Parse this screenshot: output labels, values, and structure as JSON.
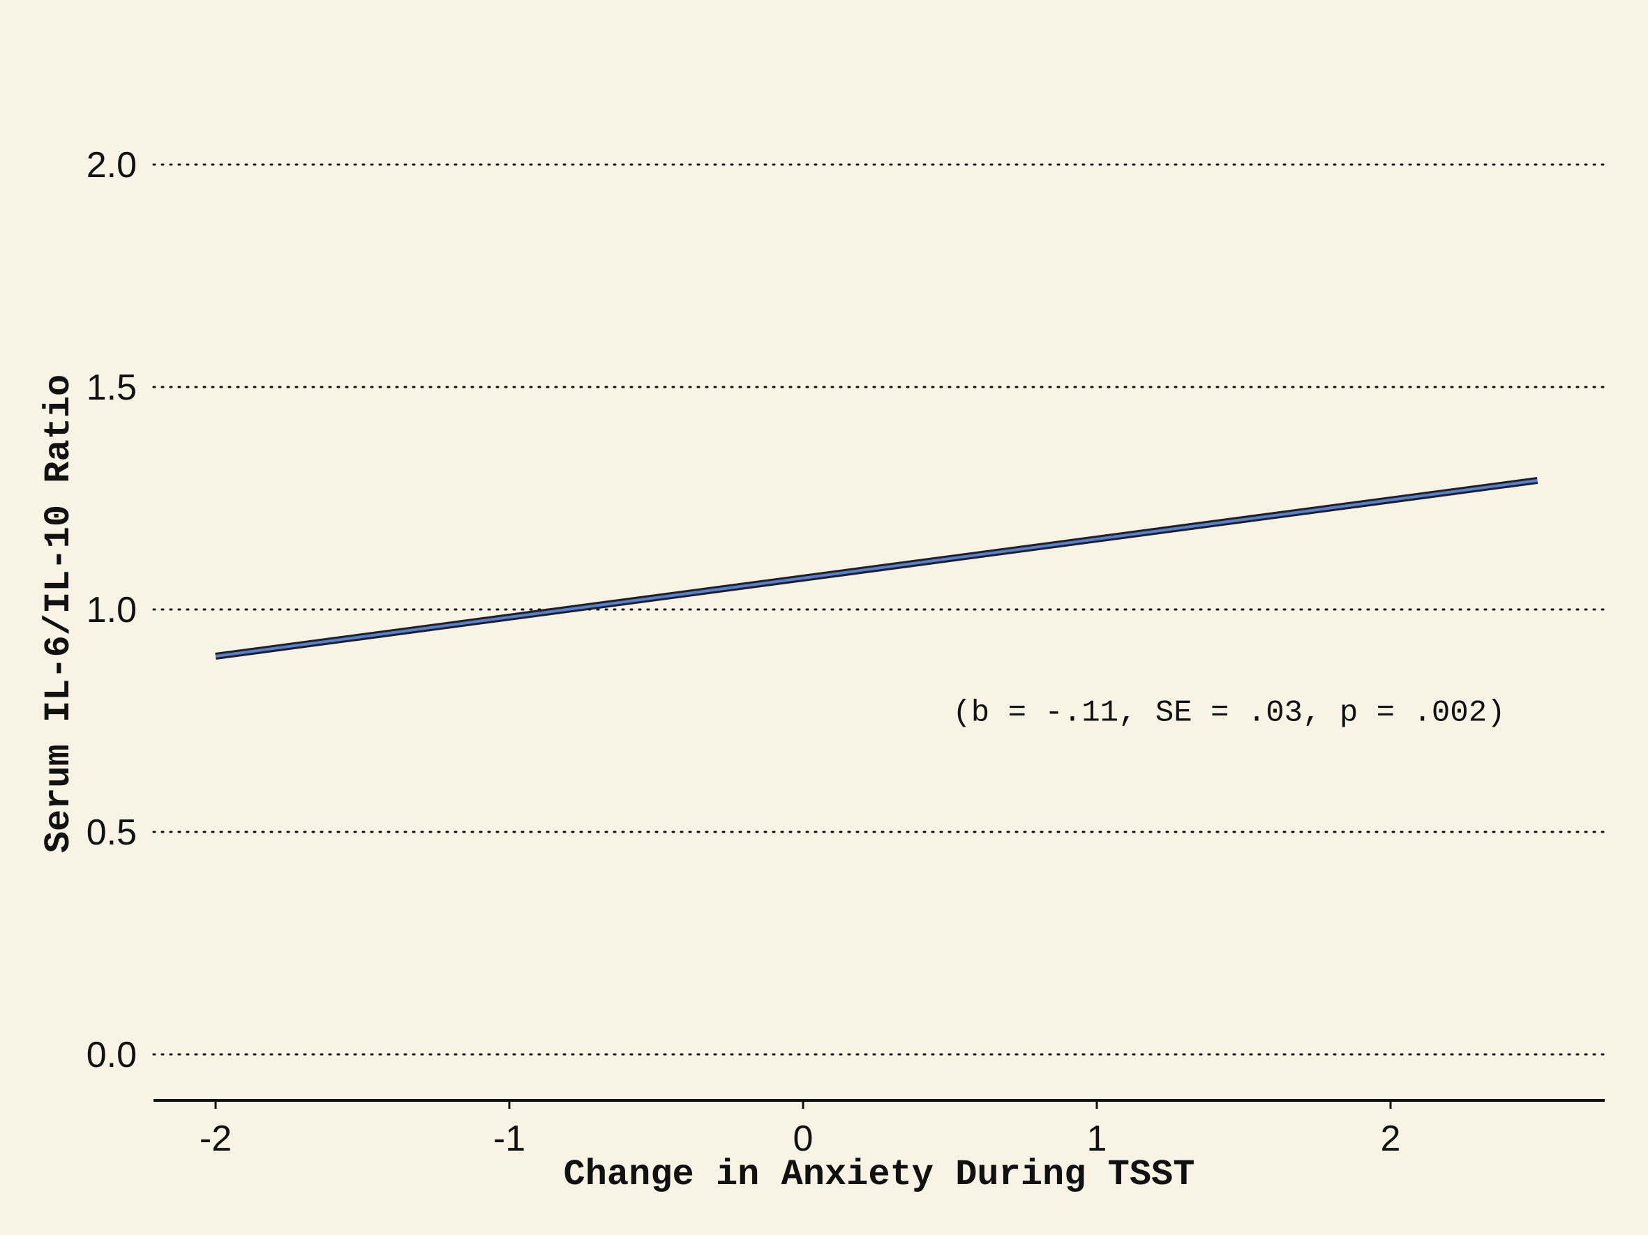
{
  "chart_data": {
    "type": "line",
    "title": "",
    "xlabel": "Change in Anxiety During TSST",
    "ylabel": "Serum IL-6/IL-10 Ratio",
    "xlim": [
      -2.22,
      2.72
    ],
    "ylim": [
      -0.1,
      2.2
    ],
    "xticks": [
      -2,
      -1,
      0,
      1,
      2
    ],
    "xtick_labels": [
      "-2",
      "-1",
      "0",
      "1",
      "2"
    ],
    "yticks": [
      0.0,
      0.5,
      1.0,
      1.5,
      2.0
    ],
    "ytick_labels": [
      "0.0",
      "0.5",
      "1.0",
      "1.5",
      "2.0"
    ],
    "grid": "horizontal dotted",
    "series": [
      {
        "x": [
          -2,
          2.5
        ],
        "y": [
          0.895,
          1.29
        ],
        "color": "#5b7fc4",
        "outline": "#1c1f2e"
      }
    ],
    "annotations": [
      {
        "text": "(b = -.11, SE = .03, p = .002)",
        "x": 1.45,
        "y": 0.775
      }
    ],
    "background": "#f8f3e5"
  }
}
